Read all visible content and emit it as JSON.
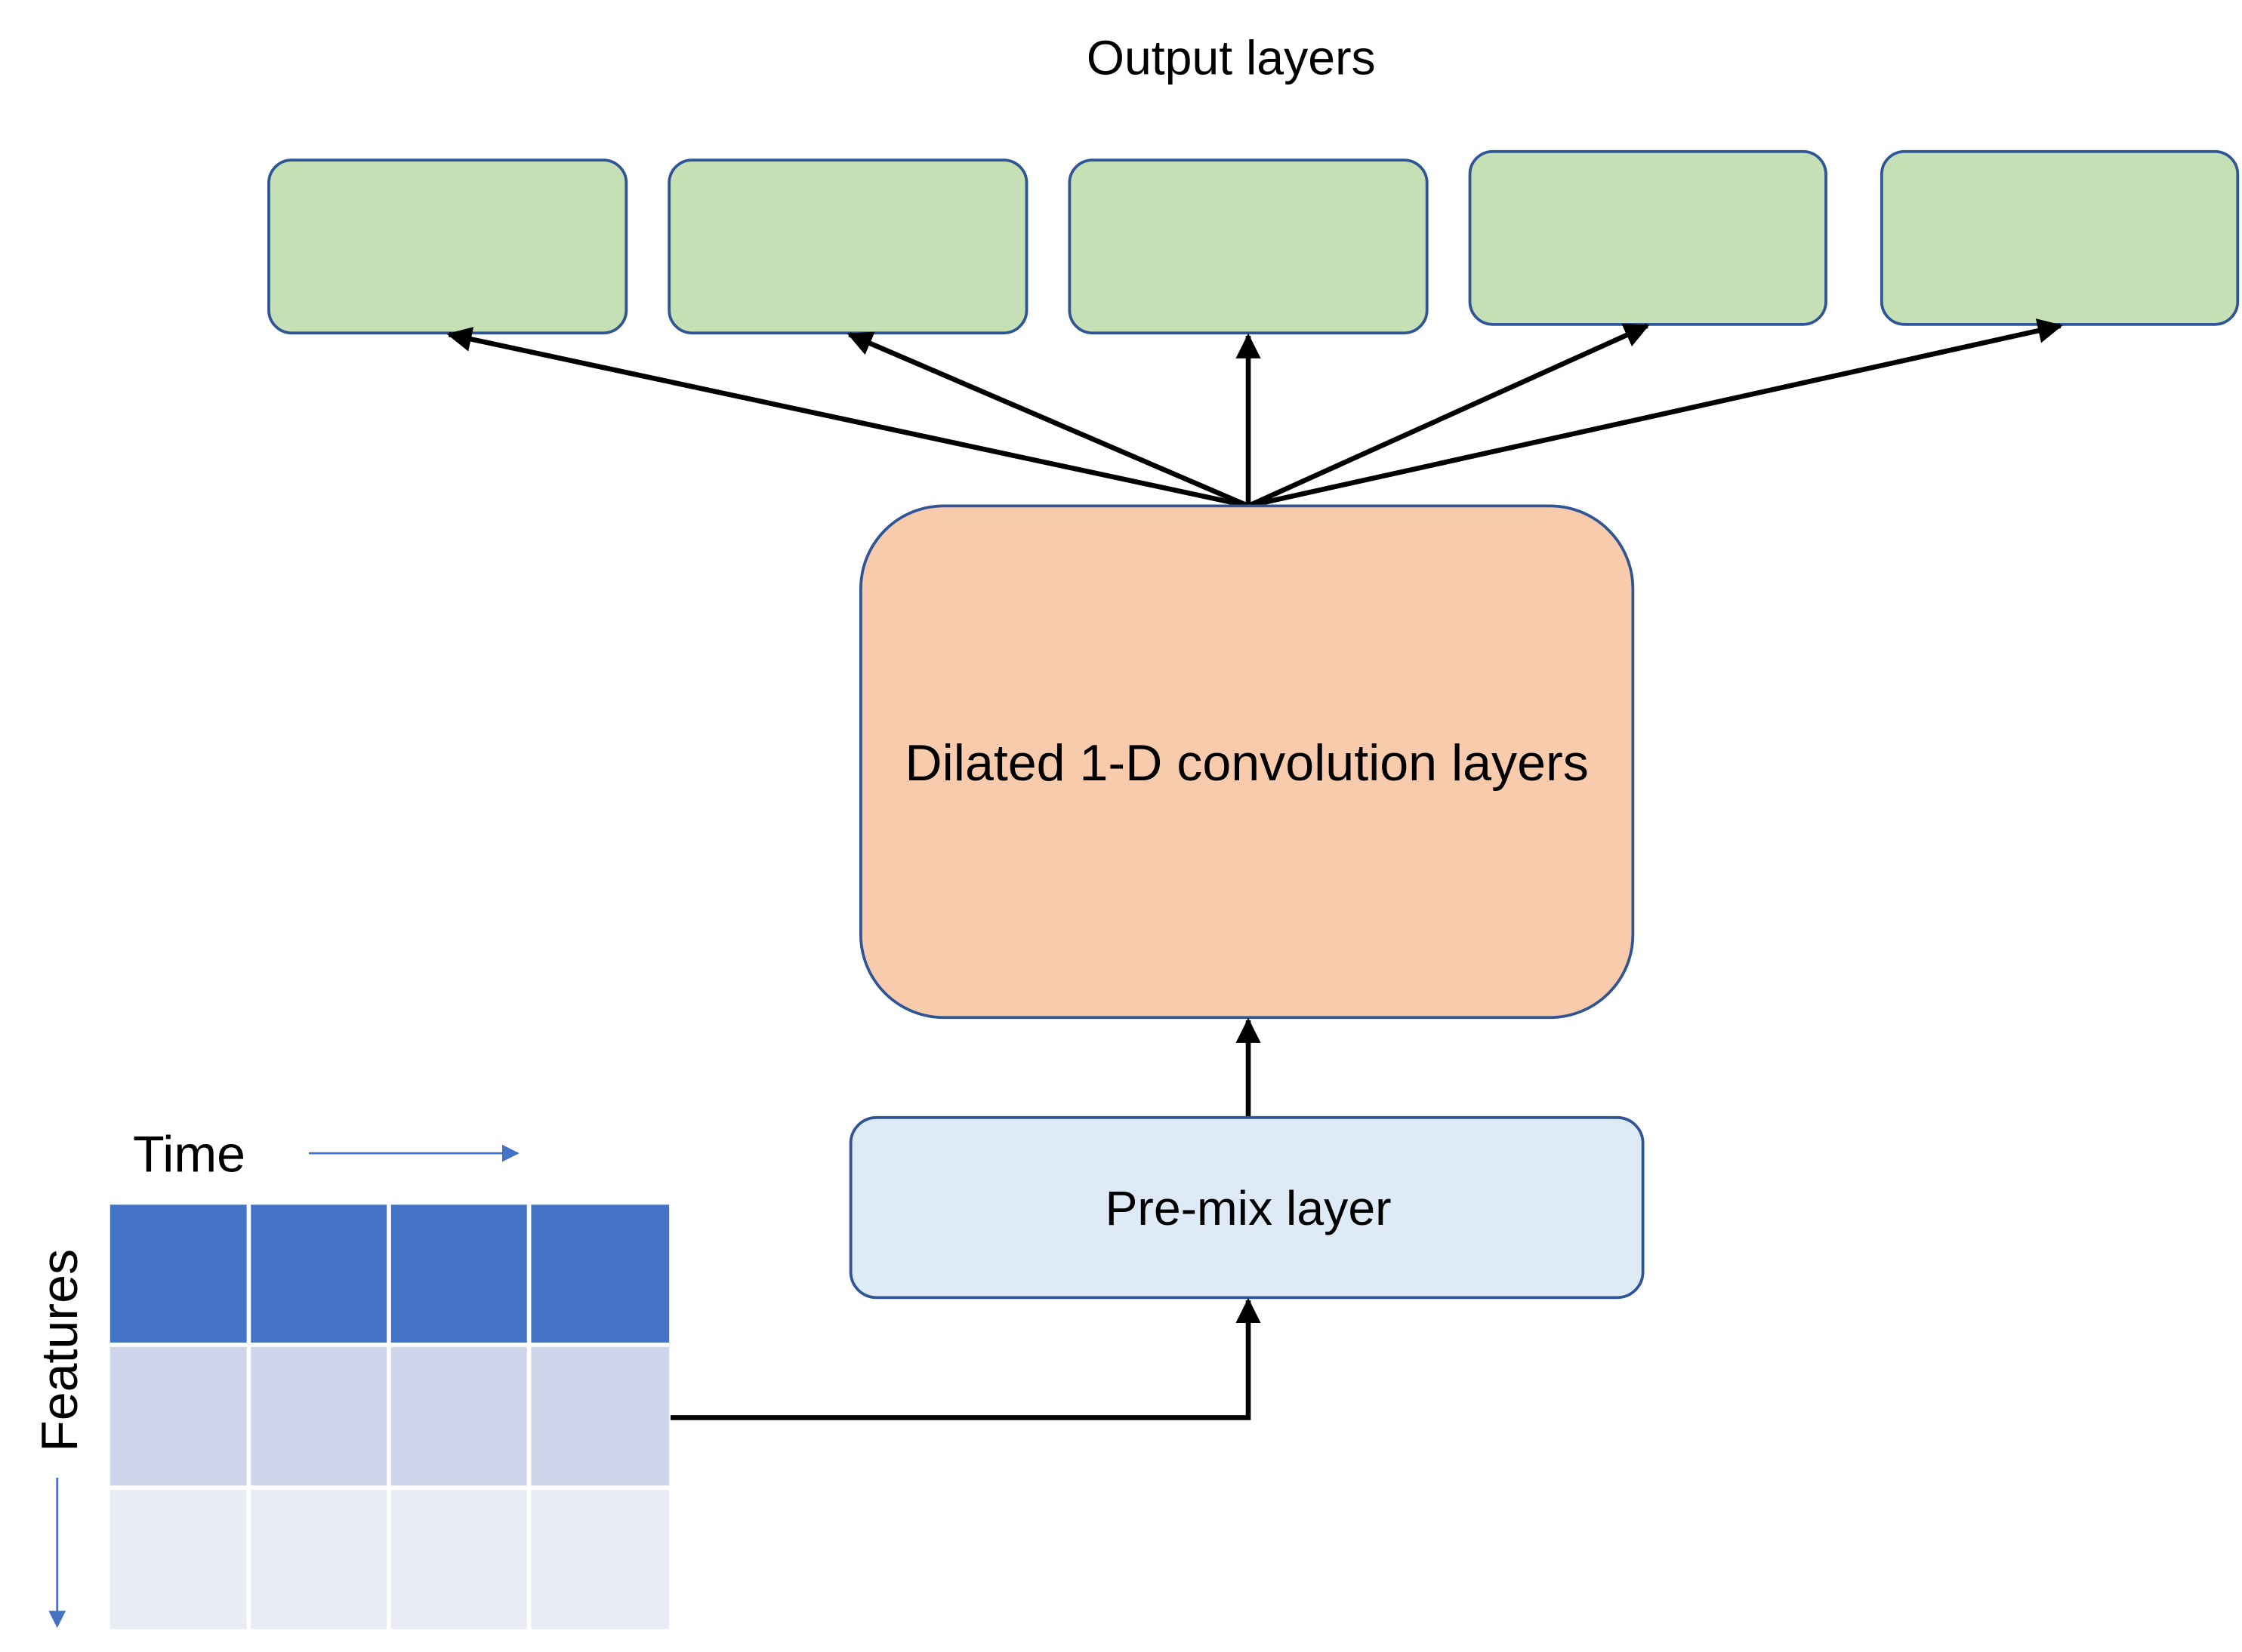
{
  "title": "Output layers",
  "conv_block": {
    "label": "Dilated 1-D convolution layers"
  },
  "premix_block": {
    "label": "Pre-mix layer"
  },
  "input_grid": {
    "time_label": "Time",
    "features_label": "Features",
    "rows": 3,
    "cols": 4
  },
  "output_layer_count": 5,
  "colors": {
    "output_fill": "#c5e0b4",
    "output_stroke": "#2f5597",
    "conv_fill": "#f8cbad",
    "conv_stroke": "#2f5597",
    "premix_fill": "#deebf7",
    "premix_stroke": "#2f5597",
    "grid_row_1": "#4472c4",
    "grid_row_2": "#cfd5ea",
    "grid_row_3": "#e9ebf5",
    "grid_lines": "#ffffff",
    "axis_arrow": "#4472c4",
    "connector": "#000000"
  }
}
